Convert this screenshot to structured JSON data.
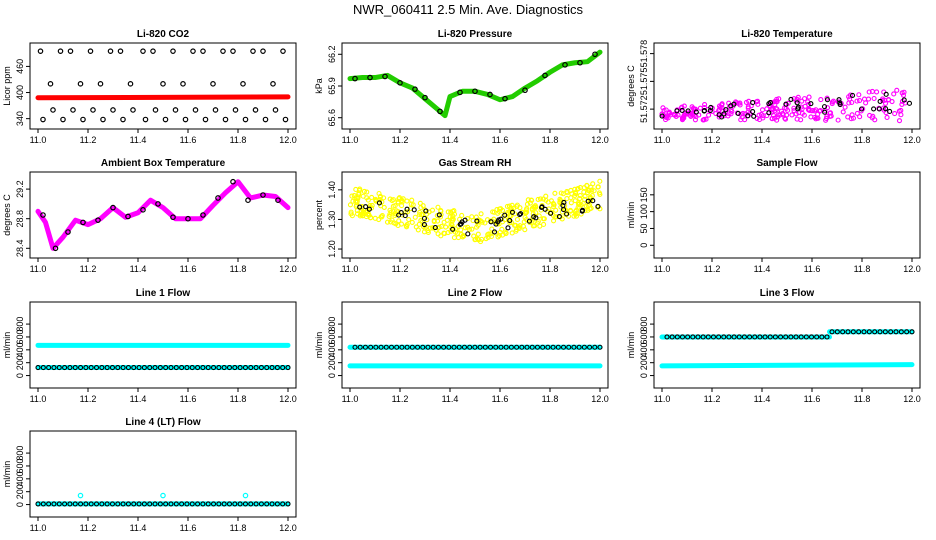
{
  "page": {
    "title": "NWR_060411  2.5 Min. Ave. Diagnostics"
  },
  "colors": {
    "red": "#ff0000",
    "green": "#22cc00",
    "magenta": "#ff00ff",
    "yellow": "#ffff00",
    "cyan": "#00ffff",
    "black": "#000000"
  },
  "chart_data": [
    {
      "id": "co2",
      "type": "scatter",
      "title": "Li-820 CO2",
      "ylabel": "Licor ppm",
      "xlim": [
        11.0,
        12.0
      ],
      "ylim": [
        330,
        500
      ],
      "yticks": [
        "340",
        "400",
        "460"
      ],
      "ytick_values": [
        340,
        400,
        460
      ],
      "xticks": [
        "11.0",
        "11.2",
        "11.4",
        "11.6",
        "11.8",
        "12.0"
      ],
      "series": [
        {
          "name": "thick",
          "kind": "thick",
          "color": "#ff0000",
          "x": [
            11.0,
            12.0
          ],
          "y": [
            388,
            390
          ]
        },
        {
          "name": "black-upper",
          "kind": "circle",
          "color": "#000000",
          "x": [
            11.01,
            11.05,
            11.09,
            11.13,
            11.17,
            11.21,
            11.25,
            11.29,
            11.33,
            11.37,
            11.42,
            11.46,
            11.5,
            11.54,
            11.58,
            11.62,
            11.66,
            11.7,
            11.74,
            11.78,
            11.82,
            11.86,
            11.9,
            11.94,
            11.98
          ],
          "y": [
            495,
            420,
            495,
            495,
            420,
            495,
            420,
            495,
            495,
            420,
            495,
            495,
            420,
            495,
            420,
            495,
            495,
            420,
            495,
            495,
            420,
            495,
            495,
            420,
            495
          ]
        },
        {
          "name": "black-lower",
          "kind": "circle",
          "color": "#000000",
          "x": [
            11.02,
            11.06,
            11.1,
            11.14,
            11.18,
            11.22,
            11.26,
            11.3,
            11.34,
            11.38,
            11.43,
            11.47,
            11.51,
            11.55,
            11.59,
            11.63,
            11.67,
            11.71,
            11.75,
            11.79,
            11.83,
            11.87,
            11.91,
            11.95,
            11.99
          ],
          "y": [
            338,
            360,
            338,
            360,
            338,
            360,
            338,
            360,
            338,
            360,
            338,
            360,
            338,
            360,
            338,
            360,
            338,
            360,
            338,
            360,
            338,
            360,
            338,
            360,
            338
          ]
        }
      ]
    },
    {
      "id": "pressure",
      "type": "scatter",
      "title": "Li-820 Pressure",
      "ylabel": "kPa",
      "xlim": [
        11.0,
        12.0
      ],
      "ylim": [
        65.55,
        66.25
      ],
      "yticks": [
        "65.6",
        "65.9",
        "66.2"
      ],
      "ytick_values": [
        65.6,
        65.9,
        66.2
      ],
      "xticks": [
        "11.0",
        "11.2",
        "11.4",
        "11.6",
        "11.8",
        "12.0"
      ],
      "series": [
        {
          "name": "green",
          "kind": "thick",
          "color": "#22cc00",
          "x": [
            11.0,
            11.05,
            11.1,
            11.15,
            11.2,
            11.25,
            11.3,
            11.35,
            11.38,
            11.4,
            11.45,
            11.5,
            11.55,
            11.6,
            11.65,
            11.7,
            11.75,
            11.8,
            11.85,
            11.9,
            11.95,
            12.0
          ],
          "y": [
            65.97,
            65.98,
            65.98,
            66.0,
            65.93,
            65.88,
            65.78,
            65.68,
            65.62,
            65.8,
            65.85,
            65.85,
            65.82,
            65.77,
            65.8,
            65.88,
            65.95,
            66.03,
            66.1,
            66.12,
            66.13,
            66.22
          ]
        },
        {
          "name": "black",
          "kind": "circle",
          "color": "#000000",
          "x": [
            11.02,
            11.08,
            11.14,
            11.2,
            11.26,
            11.3,
            11.36,
            11.44,
            11.5,
            11.56,
            11.62,
            11.7,
            11.78,
            11.86,
            11.92,
            11.98
          ],
          "y": [
            65.97,
            65.98,
            65.99,
            65.93,
            65.87,
            65.79,
            65.66,
            65.84,
            65.85,
            65.82,
            65.78,
            65.86,
            66.0,
            66.1,
            66.12,
            66.2
          ]
        }
      ]
    },
    {
      "id": "licor-temp",
      "type": "scatter",
      "title": "Li-820 Temperature",
      "ylabel": "degrees C",
      "xlim": [
        11.0,
        12.0
      ],
      "ylim": [
        51.5705,
        51.5785
      ],
      "yticks": [
        "51.572",
        "51.575",
        "51.578"
      ],
      "ytick_values": [
        51.572,
        51.575,
        51.578
      ],
      "xticks": [
        "11.0",
        "11.2",
        "11.4",
        "11.6",
        "11.8",
        "12.0"
      ],
      "series": [
        {
          "name": "magenta",
          "kind": "noise",
          "color": "#ff00ff",
          "n": 260,
          "x0": 11.0,
          "x1": 12.0,
          "ybase": [
            51.5715,
            51.5725
          ],
          "spread": 0.0022,
          "seed": 7
        },
        {
          "name": "black",
          "kind": "noise",
          "color": "#000000",
          "n": 45,
          "x0": 11.0,
          "x1": 12.0,
          "ybase": [
            51.5715,
            51.5728
          ],
          "spread": 0.0016,
          "seed": 19
        }
      ]
    },
    {
      "id": "box-temp",
      "type": "scatter",
      "title": "Ambient Box Temperature",
      "ylabel": "degrees C",
      "xlim": [
        11.0,
        12.0
      ],
      "ylim": [
        28.35,
        29.35
      ],
      "yticks": [
        "28.4",
        "28.8",
        "29.2"
      ],
      "ytick_values": [
        28.4,
        28.8,
        29.2
      ],
      "xticks": [
        "11.0",
        "11.2",
        "11.4",
        "11.6",
        "11.8",
        "12.0"
      ],
      "series": [
        {
          "name": "magenta",
          "kind": "thick",
          "color": "#ff00ff",
          "x": [
            11.0,
            11.03,
            11.06,
            11.1,
            11.15,
            11.2,
            11.25,
            11.3,
            11.35,
            11.4,
            11.45,
            11.5,
            11.55,
            11.6,
            11.65,
            11.7,
            11.75,
            11.8,
            11.85,
            11.9,
            11.95,
            12.0
          ],
          "y": [
            28.9,
            28.75,
            28.4,
            28.55,
            28.78,
            28.72,
            28.8,
            28.95,
            28.82,
            28.88,
            29.05,
            28.95,
            28.8,
            28.8,
            28.8,
            28.98,
            29.15,
            29.3,
            29.08,
            29.12,
            29.1,
            28.95
          ]
        },
        {
          "name": "black",
          "kind": "circle",
          "color": "#000000",
          "x": [
            11.02,
            11.07,
            11.12,
            11.18,
            11.24,
            11.3,
            11.36,
            11.42,
            11.48,
            11.54,
            11.6,
            11.66,
            11.72,
            11.78,
            11.84,
            11.9,
            11.96
          ],
          "y": [
            28.85,
            28.4,
            28.62,
            28.75,
            28.78,
            28.95,
            28.83,
            28.92,
            29.0,
            28.82,
            28.8,
            28.85,
            29.08,
            29.3,
            29.05,
            29.12,
            29.05
          ]
        }
      ]
    },
    {
      "id": "rh",
      "type": "scatter",
      "title": "Gas Stream RH",
      "ylabel": "percent",
      "xlim": [
        11.0,
        12.0
      ],
      "ylim": [
        1.19,
        1.44
      ],
      "yticks": [
        "1.20",
        "1.30",
        "1.40"
      ],
      "ytick_values": [
        1.2,
        1.3,
        1.4
      ],
      "xticks": [
        "11.0",
        "11.2",
        "11.4",
        "11.6",
        "11.8",
        "12.0"
      ],
      "series": [
        {
          "name": "yellow",
          "kind": "noiseU",
          "color": "#ffff00",
          "n": 420,
          "x0": 11.0,
          "x1": 12.0,
          "ybase": [
            1.36,
            1.27,
            1.38
          ],
          "spread": 0.1,
          "seed": 3
        },
        {
          "name": "black",
          "kind": "noiseU",
          "color": "#000000",
          "n": 50,
          "x0": 11.0,
          "x1": 12.0,
          "ybase": [
            1.36,
            1.27,
            1.37
          ],
          "spread": 0.06,
          "seed": 11
        }
      ]
    },
    {
      "id": "sample-flow",
      "type": "scatter",
      "title": "Sample Flow",
      "ylabel": "ml/min",
      "xlim": [
        11.0,
        12.0
      ],
      "ylim": [
        -20,
        200
      ],
      "yticks": [
        "0",
        "50",
        "100",
        "150"
      ],
      "ytick_values": [
        0,
        50,
        100,
        150
      ],
      "xticks": [
        "11.0",
        "11.2",
        "11.4",
        "11.6",
        "11.8",
        "12.0"
      ],
      "series": []
    },
    {
      "id": "line1",
      "type": "scatter",
      "title": "Line 1 Flow",
      "ylabel": "ml/min",
      "xlim": [
        11.0,
        12.0
      ],
      "ylim": [
        -100,
        1050
      ],
      "yticks": [
        "0",
        "200",
        "400",
        "600",
        "800"
      ],
      "ytick_values": [
        0,
        200,
        400,
        600,
        800
      ],
      "xticks": [
        "11.0",
        "11.2",
        "11.4",
        "11.6",
        "11.8",
        "12.0"
      ],
      "series": [
        {
          "name": "cyan-upper",
          "kind": "thick",
          "color": "#00ffff",
          "x": [
            11.0,
            12.0
          ],
          "y": [
            470,
            470
          ]
        },
        {
          "name": "cyan-lower",
          "kind": "thick",
          "color": "#00ffff",
          "x": [
            11.0,
            12.0
          ],
          "y": [
            125,
            125
          ]
        },
        {
          "name": "black",
          "kind": "circles-line",
          "color": "#000000",
          "n": 48,
          "x0": 11.0,
          "x1": 12.0,
          "y": 125
        }
      ]
    },
    {
      "id": "line2",
      "type": "scatter",
      "title": "Line 2 Flow",
      "ylabel": "ml/min",
      "xlim": [
        11.0,
        12.0
      ],
      "ylim": [
        -100,
        1050
      ],
      "yticks": [
        "0",
        "200",
        "400",
        "600",
        "800"
      ],
      "ytick_values": [
        0,
        200,
        400,
        600,
        800
      ],
      "xticks": [
        "11.0",
        "11.2",
        "11.4",
        "11.6",
        "11.8",
        "12.0"
      ],
      "series": [
        {
          "name": "cyan-upper",
          "kind": "thick",
          "color": "#00ffff",
          "x": [
            11.0,
            12.0
          ],
          "y": [
            440,
            440
          ]
        },
        {
          "name": "cyan-lower",
          "kind": "thick",
          "color": "#00ffff",
          "x": [
            11.0,
            12.0
          ],
          "y": [
            150,
            150
          ]
        },
        {
          "name": "black",
          "kind": "circles-line",
          "color": "#000000",
          "n": 48,
          "x0": 11.02,
          "x1": 12.0,
          "y": 440
        }
      ]
    },
    {
      "id": "line3",
      "type": "scatter",
      "title": "Line 3 Flow",
      "ylabel": "ml/min",
      "xlim": [
        11.0,
        12.0
      ],
      "ylim": [
        -100,
        1050
      ],
      "yticks": [
        "0",
        "200",
        "400",
        "600",
        "800"
      ],
      "ytick_values": [
        0,
        200,
        400,
        600,
        800
      ],
      "xticks": [
        "11.0",
        "11.2",
        "11.4",
        "11.6",
        "11.8",
        "12.0"
      ],
      "series": [
        {
          "name": "cyan-upper-a",
          "kind": "thick",
          "color": "#00ffff",
          "x": [
            11.0,
            11.67
          ],
          "y": [
            600,
            600
          ]
        },
        {
          "name": "cyan-upper-b",
          "kind": "thick",
          "color": "#00ffff",
          "x": [
            11.67,
            12.0
          ],
          "y": [
            680,
            680
          ]
        },
        {
          "name": "cyan-lower",
          "kind": "thick",
          "color": "#00ffff",
          "x": [
            11.0,
            12.0
          ],
          "y": [
            150,
            170
          ]
        },
        {
          "name": "black-a",
          "kind": "circles-line",
          "color": "#000000",
          "n": 32,
          "x0": 11.02,
          "x1": 11.66,
          "y": 600
        },
        {
          "name": "black-b",
          "kind": "circles-line",
          "color": "#000000",
          "n": 16,
          "x0": 11.68,
          "x1": 12.0,
          "y": 680
        }
      ]
    },
    {
      "id": "line4",
      "type": "scatter",
      "title": "Line 4 (LT) Flow",
      "ylabel": "ml/min",
      "xlim": [
        11.0,
        12.0
      ],
      "ylim": [
        -100,
        1050
      ],
      "yticks": [
        "0",
        "200",
        "400",
        "600",
        "800"
      ],
      "ytick_values": [
        0,
        200,
        400,
        600,
        800
      ],
      "xticks": [
        "11.0",
        "11.2",
        "11.4",
        "11.6",
        "11.8",
        "12.0"
      ],
      "series": [
        {
          "name": "cyan",
          "kind": "thick",
          "color": "#00ffff",
          "x": [
            11.0,
            12.0
          ],
          "y": [
            10,
            10
          ]
        },
        {
          "name": "cyan-spikes",
          "kind": "circle",
          "color": "#00ffff",
          "x": [
            11.17,
            11.5,
            11.83
          ],
          "y": [
            140,
            140,
            140
          ]
        },
        {
          "name": "black",
          "kind": "circles-line",
          "color": "#000000",
          "n": 48,
          "x0": 11.0,
          "x1": 12.0,
          "y": 10
        }
      ]
    }
  ]
}
